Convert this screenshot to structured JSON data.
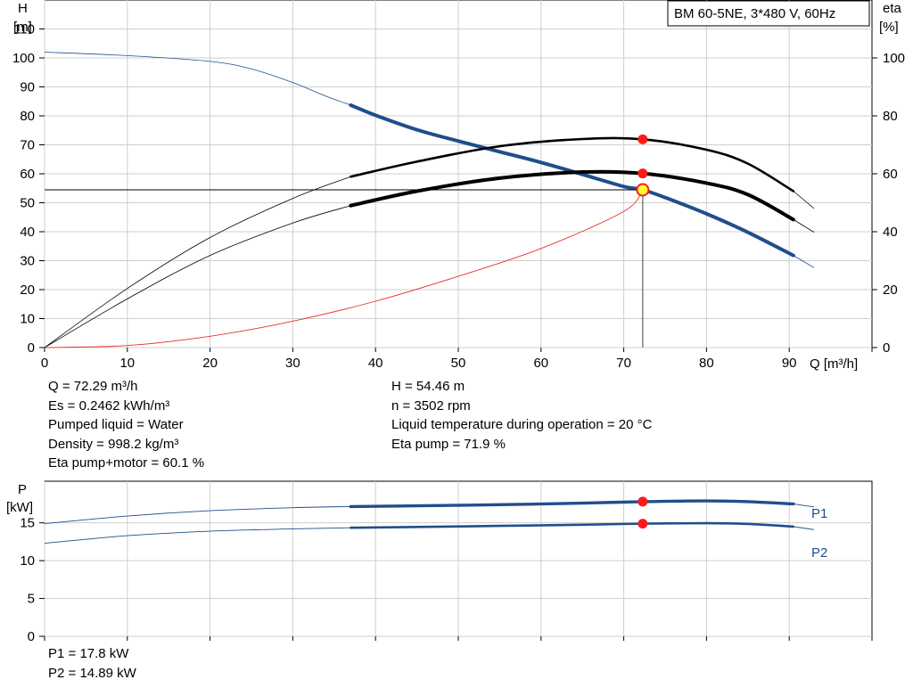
{
  "chart_data": [
    {
      "type": "line",
      "title": "BM 60-5NE, 3*480 V, 60Hz",
      "xlabel": "Q [m³/h]",
      "ylabel_left": [
        "H",
        "[m]"
      ],
      "ylabel_right": [
        "eta",
        "[%]"
      ],
      "xlim": [
        0,
        100
      ],
      "ylim_left": [
        0,
        120
      ],
      "ylim_right": [
        0,
        120
      ],
      "x_ticks": [
        0,
        10,
        20,
        30,
        40,
        50,
        60,
        70,
        80,
        90
      ],
      "y_ticks_left": [
        0,
        10,
        20,
        30,
        40,
        50,
        60,
        70,
        80,
        90,
        100,
        110
      ],
      "y_ticks_right": [
        0,
        20,
        40,
        60,
        80,
        100
      ],
      "grid": true,
      "duty_range": [
        37,
        90.5
      ],
      "series": [
        {
          "id": "head",
          "axis": "left",
          "color": "#1f4e8c",
          "x": [
            0,
            10,
            20,
            25,
            30,
            34,
            37,
            40,
            45,
            50,
            55,
            60,
            65,
            70,
            72.29,
            75,
            80,
            85,
            90.5,
            93
          ],
          "y": [
            102,
            100.8,
            98.8,
            96.2,
            91.5,
            86.8,
            83.7,
            80.2,
            75.2,
            71.3,
            67.6,
            63.9,
            59.8,
            55.6,
            54.46,
            51.8,
            46.2,
            39.8,
            31.8,
            27.6
          ]
        },
        {
          "id": "eta-pump",
          "axis": "right",
          "color": "#000000",
          "x": [
            0,
            10,
            20,
            30,
            37,
            45,
            55,
            65,
            72.29,
            80,
            85,
            90.5,
            93
          ],
          "y": [
            0,
            20.4,
            38,
            51.5,
            59,
            64.2,
            69.5,
            72,
            71.9,
            68.3,
            63.5,
            54,
            48
          ]
        },
        {
          "id": "eta-total",
          "axis": "right",
          "color": "#000000",
          "x": [
            0,
            10,
            20,
            30,
            37,
            45,
            55,
            65,
            72.29,
            80,
            85,
            90.5,
            93
          ],
          "y": [
            0,
            16.8,
            31.8,
            43,
            49,
            54,
            58.5,
            60.6,
            60.1,
            56.8,
            52.8,
            44.2,
            39.8
          ]
        },
        {
          "id": "system-curve",
          "axis": "left",
          "color": "#e8302a",
          "x": [
            0,
            10,
            20,
            30,
            40,
            50,
            60,
            70,
            72.29
          ],
          "y": [
            0,
            0.7,
            3.9,
            9.1,
            16,
            24.6,
            34.2,
            47,
            54.46
          ]
        }
      ],
      "duty_point": {
        "x": 72.29,
        "y": 54.46
      },
      "duty_markers": [
        {
          "x": 72.29,
          "eta": 71.9
        },
        {
          "x": 72.29,
          "eta": 60.1
        }
      ]
    },
    {
      "type": "line",
      "xlabel": "",
      "ylabel_left": [
        "P",
        "[kW]"
      ],
      "xlim": [
        0,
        100
      ],
      "ylim_left": [
        0,
        20.5
      ],
      "y_ticks_left": [
        0,
        5,
        10,
        15
      ],
      "grid": true,
      "duty_range": [
        37,
        90.5
      ],
      "series": [
        {
          "id": "P1",
          "name": "P1",
          "color": "#1f4e8c",
          "x": [
            0,
            10,
            20,
            30,
            37,
            45,
            55,
            65,
            72.29,
            80,
            85,
            90.5,
            93
          ],
          "y": [
            14.9,
            15.9,
            16.6,
            17.0,
            17.15,
            17.25,
            17.4,
            17.6,
            17.8,
            17.9,
            17.8,
            17.5,
            17.1
          ]
        },
        {
          "id": "P2",
          "name": "P2",
          "color": "#1f4e8c",
          "x": [
            0,
            10,
            20,
            30,
            37,
            45,
            55,
            65,
            72.29,
            80,
            85,
            90.5,
            93
          ],
          "y": [
            12.3,
            13.3,
            13.9,
            14.2,
            14.35,
            14.45,
            14.6,
            14.75,
            14.89,
            14.95,
            14.85,
            14.5,
            14.1
          ]
        }
      ],
      "duty_markers": [
        {
          "series": "P1",
          "x": 72.29,
          "y": 17.8
        },
        {
          "series": "P2",
          "x": 72.29,
          "y": 14.89
        }
      ]
    }
  ],
  "results": {
    "left": [
      "Q = 72.29 m³/h",
      "Es = 0.2462 kWh/m³",
      "Pumped liquid = Water",
      "Density = 998.2 kg/m³",
      "Eta pump+motor = 60.1 %"
    ],
    "right": [
      "H = 54.46 m",
      "n = 3502 rpm",
      "Liquid temperature during operation = 20 °C",
      "Eta pump = 71.9 %"
    ]
  },
  "power_results": [
    "P1 = 17.8 kW",
    "P2 = 14.89 kW"
  ]
}
